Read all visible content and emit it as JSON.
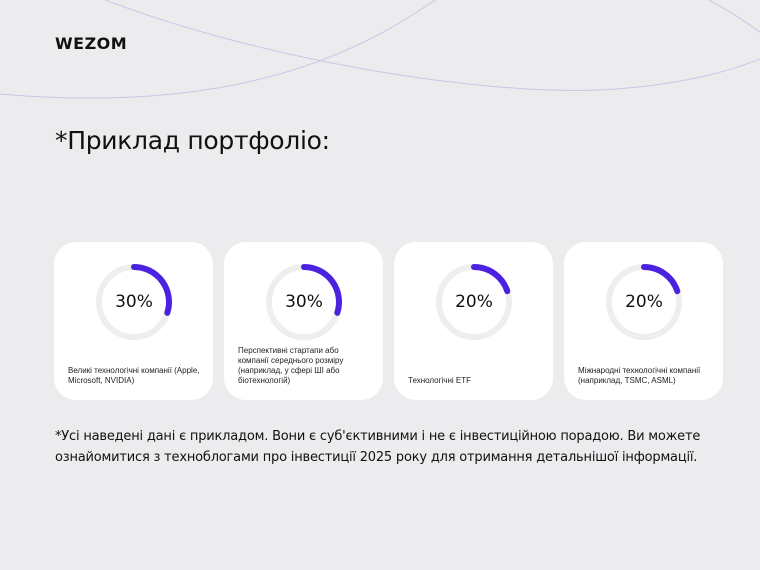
{
  "brand": {
    "logo": "WEZOM"
  },
  "title": "*Приклад портфоліо:",
  "cards": [
    {
      "value_label": "30%",
      "percent": 30,
      "label": "Великі технологічні компанії (Apple, Microsoft, NVIDIA)"
    },
    {
      "value_label": "30%",
      "percent": 30,
      "label": "Перспективні стартапи або компанії середнього розміру (наприклад, у сфері ШІ або біотехнологій)"
    },
    {
      "value_label": "20%",
      "percent": 20,
      "label": "Технологічні ETF"
    },
    {
      "value_label": "20%",
      "percent": 20,
      "label": "Міжнародні технологічні компанії (наприклад, TSMC, ASML)"
    }
  ],
  "disclaimer": "*Усі наведені дані є прикладом. Вони є суб'єктивними і не є інвестиційною порадою. Ви можете ознайомитися з техноблогами про інвестиції 2025 року для отримання детальнішої інформації.",
  "colors": {
    "background": "#ececee",
    "card": "#ffffff",
    "accent": "#4a22e0",
    "track": "#eeeeee",
    "lines": "#c9c6e6"
  }
}
